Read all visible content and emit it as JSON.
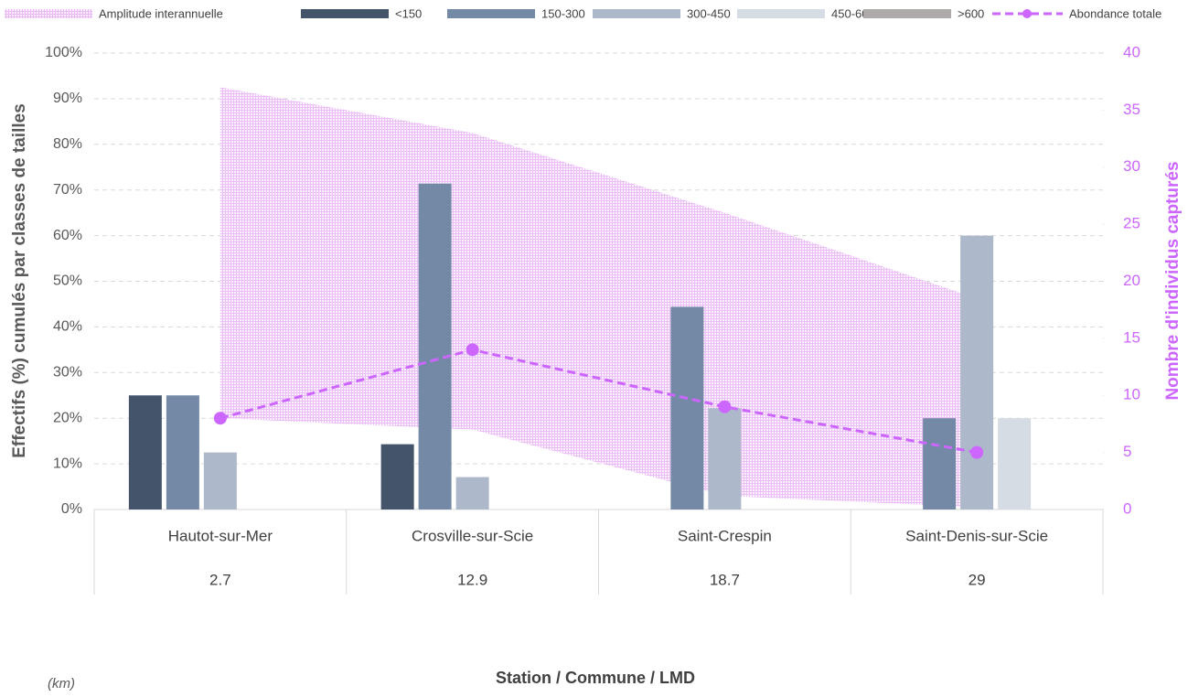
{
  "chart_data": {
    "type": "bar",
    "categories": [
      "Hautot-sur-Mer",
      "Crosville-sur-Scie",
      "Saint-Crespin",
      "Saint-Denis-sur-Scie"
    ],
    "distances": [
      2.7,
      12.9,
      18.7,
      29
    ],
    "series": [
      {
        "name": "<150",
        "color": "#44546a",
        "values": [
          25,
          14.3,
          0,
          0
        ]
      },
      {
        "name": "150-300",
        "color": "#7489a6",
        "values": [
          25,
          71.4,
          44.4,
          20
        ]
      },
      {
        "name": "300-450",
        "color": "#adb9ca",
        "values": [
          12.5,
          7.1,
          22.2,
          60
        ]
      },
      {
        "name": "450-600",
        "color": "#d6dce4",
        "values": [
          0,
          0,
          0,
          20
        ]
      },
      {
        "name": ">600",
        "color": "#aeaaaa",
        "values": [
          0,
          0,
          0,
          0
        ]
      }
    ],
    "band": {
      "name": "Amplitude interannuelle",
      "color": "#e9b8f5",
      "axis": "y2",
      "low": [
        8,
        7,
        1.2,
        0.2
      ],
      "high": [
        37,
        33,
        26,
        18.5
      ]
    },
    "line": {
      "name": "Abondance totale",
      "color": "#cc66ff",
      "axis": "y2",
      "values": [
        8,
        14,
        9,
        5
      ]
    },
    "ylim": [
      0,
      100
    ],
    "yticks": [
      {
        "value": 0,
        "label": "0%"
      },
      {
        "value": 10,
        "label": "10%"
      },
      {
        "value": 20,
        "label": "20%"
      },
      {
        "value": 30,
        "label": "30%"
      },
      {
        "value": 40,
        "label": "40%"
      },
      {
        "value": 50,
        "label": "50%"
      },
      {
        "value": 60,
        "label": "60%"
      },
      {
        "value": 70,
        "label": "70%"
      },
      {
        "value": 80,
        "label": "80%"
      },
      {
        "value": 90,
        "label": "90%"
      },
      {
        "value": 100,
        "label": "100%"
      }
    ],
    "y2lim": [
      0,
      40
    ],
    "y2ticks": [
      0,
      5,
      10,
      15,
      20,
      25,
      30,
      35,
      40
    ],
    "grid": true,
    "legend": "top",
    "ylabel": "Effectifs (%) cumulés par classes de tailles",
    "y2label": "Nombre d'individus capturés",
    "xlabel": "Station / Commune / LMD",
    "unit_note": "(km)"
  }
}
